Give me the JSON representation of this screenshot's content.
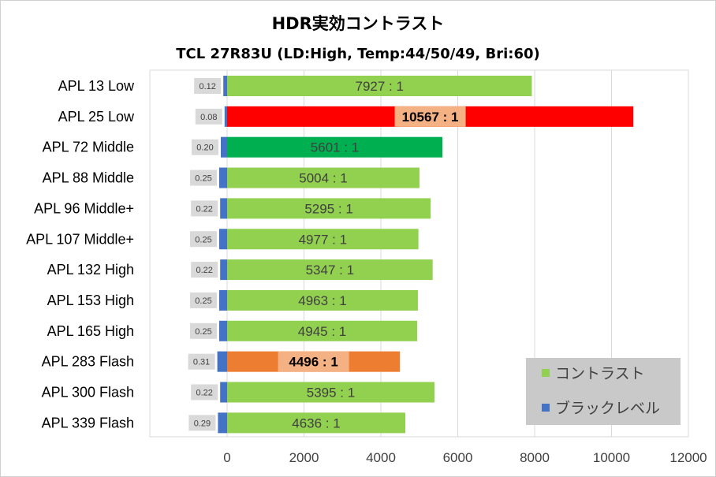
{
  "colors": {
    "contrast": "#92d050",
    "black_level": "#4472c4",
    "highlight_red": "#ff0000",
    "highlight_green": "#00b050",
    "highlight_orange": "#ed7d31",
    "label_box_light": "#d9d9d9",
    "label_box_highlight": "#f4b183",
    "legend_background": "#c9c9c9",
    "grid": "#d9d9d9"
  },
  "chart_data": {
    "type": "bar",
    "orientation": "horizontal",
    "title": "HDR実効コントラスト",
    "subtitle": "TCL 27R83U (LD:High, Temp:44/50/49, Bri:60)",
    "xlabel": "",
    "ylabel": "",
    "xlim": [
      -1000,
      12000
    ],
    "xticks": [
      0,
      2000,
      4000,
      6000,
      8000,
      10000,
      12000
    ],
    "grid": true,
    "legend_position": "bottom-right",
    "categories": [
      "APL 13 Low",
      "APL 25 Low",
      "APL 72 Middle",
      "APL 88 Middle",
      "APL 96 Middle+",
      "APL 107 Middle+",
      "APL 132 High",
      "APL 153 High",
      "APL 165 High",
      "APL 283 Flash",
      "APL 300 Flash",
      "APL 339 Flash"
    ],
    "series": [
      {
        "name": "コントラスト",
        "values": [
          7927,
          10567,
          5601,
          5004,
          5295,
          4977,
          5347,
          4963,
          4945,
          4496,
          5395,
          4636
        ],
        "labels": [
          "7927 : 1",
          "10567 : 1",
          "5601 : 1",
          "5004 : 1",
          "5295 : 1",
          "4977 : 1",
          "5347 : 1",
          "4963 : 1",
          "4945 : 1",
          "4496 : 1",
          "5395 : 1",
          "4636 : 1"
        ],
        "highlights": {
          "1": "highlight_red",
          "2": "highlight_green",
          "9": "highlight_orange"
        }
      },
      {
        "name": "ブラックレベル",
        "values": [
          0.12,
          0.08,
          0.2,
          0.25,
          0.22,
          0.25,
          0.22,
          0.25,
          0.25,
          0.31,
          0.22,
          0.29
        ],
        "labels": [
          "0.12",
          "0.08",
          "0.20",
          "0.25",
          "0.22",
          "0.25",
          "0.22",
          "0.25",
          "0.25",
          "0.31",
          "0.22",
          "0.29"
        ]
      }
    ]
  }
}
